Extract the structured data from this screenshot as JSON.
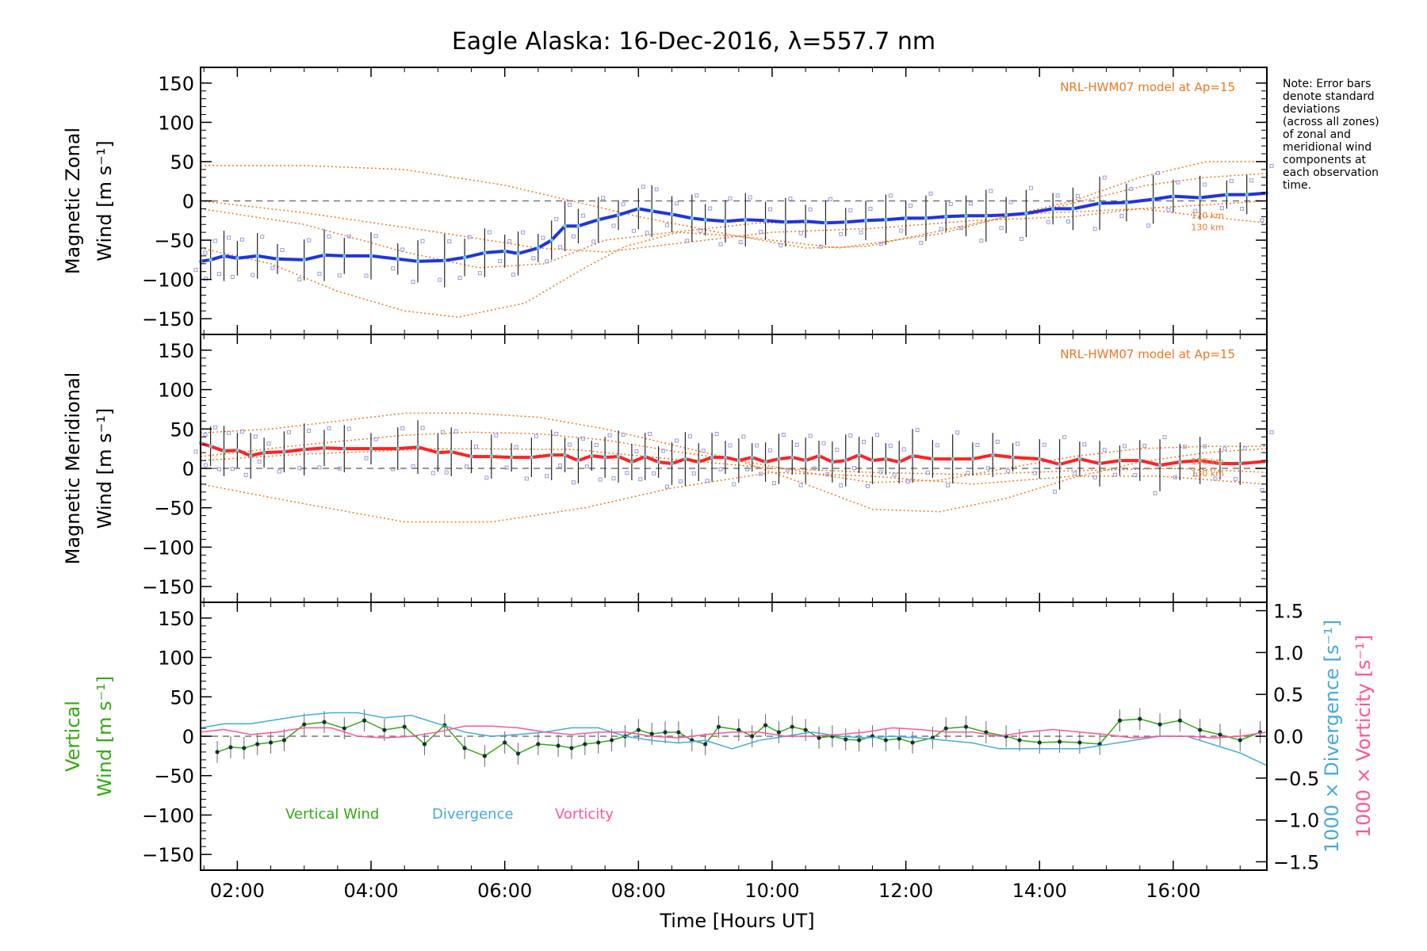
{
  "figure": {
    "title": "Eagle Alaska: 16-Dec-2016, λ=557.7 nm",
    "note_lines": [
      "Note: Error bars",
      "denote standard",
      "deviations",
      "(across all zones)",
      "of zonal and",
      "meridional wind",
      "components at",
      "each observation",
      "time."
    ],
    "xlabel": "Time [Hours UT]",
    "colors": {
      "zonal": "#2233dd",
      "meridional": "#ff2222",
      "vertical": "#33aa11",
      "divergence": "#44aadd",
      "vorticity": "#ff5599",
      "model": "#ee7722",
      "samples": "#9999dd",
      "errorbar": "#222222",
      "zero_line": "#777777"
    }
  },
  "chart_data": [
    {
      "type": "line",
      "name": "zonal",
      "ylabel_lines": [
        "Magnetic Zonal",
        "Wind [m s⁻¹]"
      ],
      "model_label": "NRL-HWM07 model at Ap=15",
      "model_height_labels": [
        "120 km",
        "130 km"
      ],
      "xlim": [
        1.45,
        17.4
      ],
      "ylim": [
        -170,
        170
      ],
      "yticks": [
        150,
        100,
        50,
        0,
        -50,
        -100,
        -150
      ],
      "xticks": [
        2,
        4,
        6,
        8,
        10,
        12,
        14,
        16
      ],
      "xtick_labels": [
        "02:00",
        "04:00",
        "06:00",
        "08:00",
        "10:00",
        "12:00",
        "14:00",
        "16:00"
      ],
      "series": [
        {
          "role": "measured",
          "x": [
            1.45,
            1.6,
            1.8,
            2.0,
            2.3,
            2.6,
            3.0,
            3.3,
            3.6,
            4.0,
            4.4,
            4.7,
            5.1,
            5.4,
            5.7,
            6.0,
            6.2,
            6.5,
            6.7,
            6.9,
            7.1,
            7.4,
            7.7,
            8.0,
            8.2,
            8.5,
            8.8,
            9.0,
            9.3,
            9.6,
            9.9,
            10.2,
            10.5,
            10.8,
            11.1,
            11.4,
            11.7,
            12.0,
            12.3,
            12.6,
            12.9,
            13.2,
            13.5,
            13.8,
            14.2,
            14.5,
            14.9,
            15.3,
            15.7,
            16.0,
            16.4,
            16.8,
            17.1,
            17.4
          ],
          "y": [
            -77,
            -75,
            -70,
            -73,
            -70,
            -74,
            -75,
            -69,
            -70,
            -70,
            -74,
            -77,
            -76,
            -72,
            -66,
            -64,
            -67,
            -60,
            -50,
            -32,
            -32,
            -24,
            -18,
            -10,
            -13,
            -17,
            -22,
            -24,
            -26,
            -24,
            -25,
            -27,
            -26,
            -28,
            -27,
            -25,
            -24,
            -22,
            -22,
            -20,
            -19,
            -19,
            -18,
            -16,
            -10,
            -10,
            -3,
            -2,
            2,
            6,
            4,
            8,
            8,
            10
          ]
        },
        {
          "role": "model",
          "x": [
            1.45,
            3,
            4.5,
            5.6,
            6.6,
            7.5,
            8.5,
            9.8,
            10.8,
            12,
            13,
            14.2,
            15.5,
            16.5,
            17.4
          ],
          "y": [
            -10,
            -30,
            -65,
            -85,
            -80,
            -50,
            -40,
            -28,
            -28,
            -24,
            -20,
            -15,
            -10,
            -20,
            -28
          ]
        },
        {
          "role": "model",
          "x": [
            1.45,
            2.5,
            3.5,
            4.5,
            5.3,
            6.3,
            7.2,
            7.8,
            8.6,
            9.5,
            10.5,
            11.4,
            12.3,
            13.4,
            14.4,
            15.6,
            16.5,
            17.4
          ],
          "y": [
            -60,
            -80,
            -115,
            -140,
            -148,
            -130,
            -85,
            -58,
            -40,
            -45,
            -60,
            -58,
            -42,
            -22,
            -5,
            20,
            30,
            35
          ]
        },
        {
          "role": "model",
          "x": [
            1.45,
            3,
            4.5,
            6,
            7,
            8,
            9.5,
            11,
            12.5,
            13.5,
            14.5,
            15.5,
            16.5,
            17.4
          ],
          "y": [
            45,
            45,
            40,
            20,
            0,
            -20,
            -45,
            -60,
            -42,
            -20,
            0,
            30,
            50,
            50
          ]
        },
        {
          "role": "model",
          "x": [
            1.45,
            3,
            5,
            6.5,
            7.5,
            8.5,
            10,
            11.5,
            13,
            14.5,
            15.5,
            16.5,
            17.4
          ],
          "y": [
            0,
            -15,
            -40,
            -60,
            -65,
            -55,
            -40,
            -35,
            -25,
            -20,
            -10,
            -5,
            0
          ]
        }
      ]
    },
    {
      "type": "line",
      "name": "meridional",
      "ylabel_lines": [
        "Magnetic Meridional",
        "Wind [m s⁻¹]"
      ],
      "model_label": "NRL-HWM07 model at Ap=15",
      "model_height_labels": [
        "120 km",
        "130 km"
      ],
      "xlim": [
        1.45,
        17.4
      ],
      "ylim": [
        -170,
        170
      ],
      "yticks": [
        150,
        100,
        50,
        0,
        -50,
        -100,
        -150
      ],
      "xticks": [
        2,
        4,
        6,
        8,
        10,
        12,
        14,
        16
      ],
      "series": [
        {
          "role": "measured",
          "x": [
            1.45,
            1.6,
            1.8,
            2.0,
            2.2,
            2.4,
            2.7,
            3.0,
            3.3,
            3.6,
            4.0,
            4.4,
            4.7,
            5.0,
            5.2,
            5.5,
            5.8,
            6.1,
            6.4,
            6.7,
            6.9,
            7.1,
            7.3,
            7.5,
            7.7,
            7.9,
            8.1,
            8.3,
            8.5,
            8.7,
            8.9,
            9.1,
            9.3,
            9.5,
            9.7,
            9.9,
            10.1,
            10.3,
            10.5,
            10.7,
            10.9,
            11.1,
            11.3,
            11.5,
            11.7,
            11.9,
            12.1,
            12.4,
            12.7,
            13.0,
            13.3,
            13.6,
            14.0,
            14.3,
            14.6,
            14.9,
            15.2,
            15.5,
            15.8,
            16.1,
            16.4,
            16.7,
            17.0,
            17.4
          ],
          "y": [
            32,
            28,
            22,
            23,
            16,
            20,
            21,
            24,
            26,
            25,
            25,
            25,
            27,
            20,
            21,
            15,
            15,
            14,
            14,
            17,
            17,
            10,
            16,
            14,
            15,
            8,
            15,
            8,
            6,
            12,
            8,
            14,
            14,
            10,
            14,
            8,
            12,
            14,
            10,
            16,
            8,
            10,
            17,
            10,
            12,
            8,
            16,
            12,
            12,
            12,
            17,
            14,
            12,
            5,
            12,
            6,
            10,
            10,
            4,
            8,
            10,
            6,
            6,
            9
          ]
        },
        {
          "role": "model",
          "x": [
            1.45,
            3,
            4.5,
            5.8,
            7.2,
            8.5,
            10,
            11.5,
            13,
            14.5,
            15.8,
            17.4
          ],
          "y": [
            -20,
            -45,
            -68,
            -68,
            -50,
            -25,
            -5,
            -10,
            -20,
            -10,
            -10,
            -20
          ]
        },
        {
          "role": "model",
          "x": [
            1.45,
            2.5,
            3.5,
            4.5,
            5.5,
            6.5,
            7.5,
            8.5,
            9.5,
            10.5,
            11.5,
            12.5,
            13.5,
            14.5,
            15.5,
            16.5,
            17.4
          ],
          "y": [
            45,
            50,
            60,
            70,
            70,
            65,
            50,
            30,
            10,
            -20,
            -52,
            -55,
            -38,
            -12,
            8,
            20,
            25
          ]
        },
        {
          "role": "model",
          "x": [
            1.45,
            3,
            4.5,
            5.5,
            6.5,
            7.5,
            8.5,
            9.5,
            10.5,
            11.5,
            12.5,
            13.5,
            14.5,
            15.5,
            16.5,
            17.4
          ],
          "y": [
            15,
            30,
            42,
            46,
            44,
            36,
            22,
            10,
            -5,
            -18,
            -15,
            0,
            15,
            25,
            28,
            28
          ]
        },
        {
          "role": "model",
          "x": [
            1.45,
            3,
            5,
            7,
            8.5,
            10,
            11.5,
            13,
            14.5,
            16,
            17.4
          ],
          "y": [
            10,
            18,
            25,
            24,
            12,
            0,
            -5,
            -8,
            -3,
            0,
            -5
          ]
        }
      ]
    },
    {
      "type": "line",
      "name": "vertical",
      "ylabel_lines": [
        "Vertical",
        "Wind [m s⁻¹]"
      ],
      "ylabel2_lines": [
        "1000 × Divergence [s⁻¹]",
        "1000 × Vorticity [s⁻¹]"
      ],
      "xlim": [
        1.45,
        17.4
      ],
      "ylim": [
        -170,
        170
      ],
      "y2lim": [
        -1.6,
        1.6
      ],
      "yticks": [
        150,
        100,
        50,
        0,
        -50,
        -100,
        -150
      ],
      "y2ticks": [
        1.5,
        1.0,
        0.5,
        0.0,
        -0.5,
        -1.0,
        -1.5
      ],
      "y2tick_labels": [
        "1.5",
        "1.0",
        "0.5",
        "0.0",
        "−0.5",
        "−1.0",
        "−1.5"
      ],
      "xticks": [
        2,
        4,
        6,
        8,
        10,
        12,
        14,
        16
      ],
      "legend": [
        "Vertical Wind",
        "Divergence",
        "Vorticity"
      ],
      "series": [
        {
          "name": "Vertical Wind",
          "axis": "left",
          "x": [
            1.7,
            1.9,
            2.1,
            2.3,
            2.5,
            2.7,
            3.0,
            3.3,
            3.6,
            3.9,
            4.2,
            4.5,
            4.8,
            5.1,
            5.4,
            5.7,
            6.0,
            6.2,
            6.5,
            6.8,
            7.0,
            7.2,
            7.4,
            7.6,
            7.8,
            8.0,
            8.2,
            8.4,
            8.6,
            8.8,
            9.0,
            9.2,
            9.5,
            9.7,
            9.9,
            10.1,
            10.3,
            10.5,
            10.7,
            10.9,
            11.1,
            11.3,
            11.5,
            11.7,
            11.9,
            12.1,
            12.4,
            12.6,
            12.9,
            13.2,
            13.5,
            13.7,
            14.0,
            14.3,
            14.6,
            14.9,
            15.2,
            15.5,
            15.8,
            16.1,
            16.4,
            16.7,
            17.0,
            17.3
          ],
          "y": [
            -20,
            -14,
            -15,
            -10,
            -8,
            -5,
            15,
            18,
            10,
            20,
            8,
            12,
            -10,
            14,
            -15,
            -25,
            -8,
            -22,
            -10,
            -12,
            -15,
            -10,
            -8,
            -5,
            0,
            8,
            3,
            5,
            5,
            -5,
            -10,
            12,
            8,
            0,
            14,
            5,
            12,
            8,
            -2,
            0,
            -4,
            -5,
            0,
            -5,
            -3,
            -8,
            -2,
            10,
            12,
            5,
            0,
            -5,
            -8,
            -7,
            -8,
            -10,
            20,
            22,
            15,
            20,
            8,
            2,
            -5,
            5
          ]
        },
        {
          "name": "Divergence",
          "axis": "right",
          "x": [
            1.45,
            1.8,
            2.2,
            2.6,
            3.0,
            3.4,
            3.8,
            4.2,
            4.6,
            5.0,
            5.4,
            5.8,
            6.2,
            6.6,
            7.0,
            7.4,
            7.8,
            8.2,
            8.6,
            9.0,
            9.4,
            9.8,
            10.2,
            10.6,
            11.0,
            11.4,
            11.8,
            12.2,
            12.6,
            13.0,
            13.4,
            13.8,
            14.2,
            14.6,
            15.0,
            15.4,
            15.8,
            16.2,
            16.6,
            17.0,
            17.4
          ],
          "y": [
            0.1,
            0.15,
            0.15,
            0.2,
            0.25,
            0.28,
            0.28,
            0.22,
            0.25,
            0.15,
            0.05,
            0.0,
            0.02,
            0.05,
            0.1,
            0.1,
            0.0,
            -0.05,
            -0.08,
            -0.05,
            -0.15,
            -0.05,
            0.0,
            0.05,
            0.0,
            -0.02,
            0.0,
            -0.02,
            -0.05,
            -0.08,
            -0.15,
            -0.15,
            -0.15,
            -0.15,
            -0.1,
            -0.05,
            0.0,
            0.0,
            -0.1,
            -0.2,
            -0.35
          ]
        },
        {
          "name": "Vorticity",
          "axis": "right",
          "x": [
            1.45,
            1.8,
            2.2,
            2.6,
            3.0,
            3.4,
            3.8,
            4.2,
            4.6,
            5.0,
            5.4,
            5.8,
            6.2,
            6.6,
            7.0,
            7.4,
            7.8,
            8.2,
            8.6,
            9.0,
            9.4,
            9.8,
            10.2,
            10.6,
            11.0,
            11.4,
            11.8,
            12.2,
            12.6,
            13.0,
            13.4,
            13.8,
            14.2,
            14.6,
            15.0,
            15.4,
            15.8,
            16.2,
            16.6,
            17.0,
            17.4
          ],
          "y": [
            0.05,
            0.08,
            0.02,
            0.05,
            0.1,
            0.1,
            0.0,
            -0.02,
            0.0,
            0.05,
            0.12,
            0.12,
            0.1,
            0.05,
            0.02,
            0.05,
            0.05,
            0.0,
            -0.02,
            0.02,
            0.05,
            0.05,
            0.0,
            0.0,
            0.02,
            0.05,
            0.1,
            0.08,
            0.05,
            0.05,
            0.0,
            0.05,
            0.08,
            0.05,
            0.02,
            -0.02,
            0.0,
            0.0,
            -0.02,
            0.0,
            0.05
          ]
        }
      ]
    }
  ]
}
